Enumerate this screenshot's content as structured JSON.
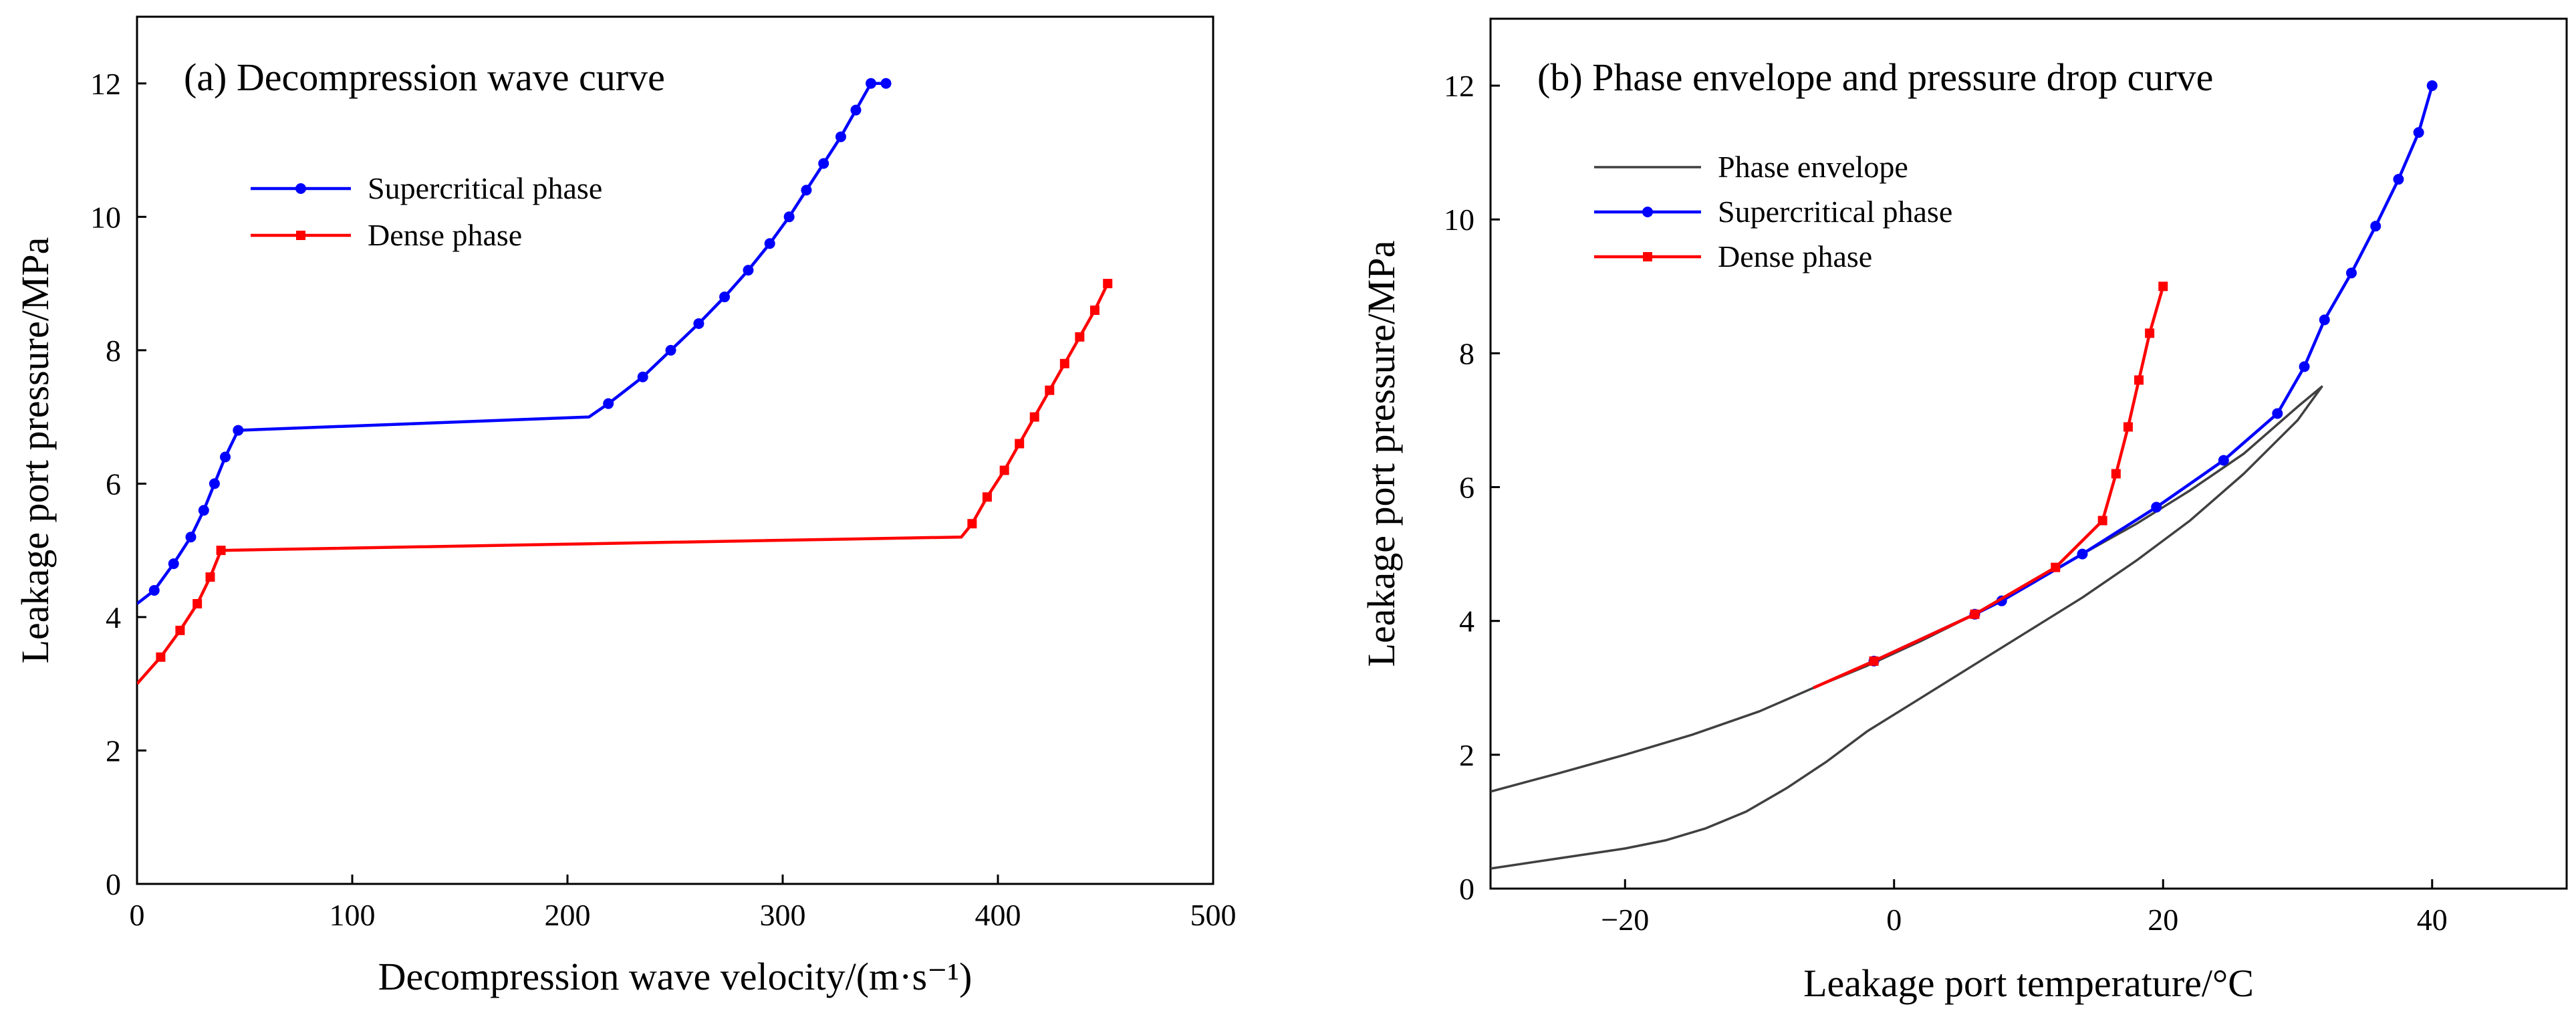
{
  "chart_data": [
    {
      "type": "line",
      "title": "(a) Decompression wave curve",
      "xlabel": "Decompression wave velocity/(m·s⁻¹)",
      "ylabel": "Leakage port pressure/MPa",
      "xlim": [
        0,
        500
      ],
      "ylim": [
        0,
        13
      ],
      "xticks": [
        0,
        100,
        200,
        300,
        400,
        500
      ],
      "yticks": [
        0,
        2,
        4,
        6,
        8,
        10,
        12
      ],
      "xtick_labels": [
        "0",
        "100",
        "200",
        "300",
        "400",
        "500"
      ],
      "ytick_labels": [
        "0",
        "2",
        "4",
        "6",
        "8",
        "10",
        "12"
      ],
      "legend_position": "upper-left",
      "series": [
        {
          "name": "Supercritical phase",
          "color": "#0000ff",
          "marker": "circle",
          "x": [
            0,
            8,
            17,
            25,
            31,
            36,
            41,
            47,
            210,
            219,
            235,
            248,
            261,
            273,
            284,
            294,
            303,
            311,
            319,
            327,
            334,
            341,
            348
          ],
          "y": [
            4.2,
            4.4,
            4.8,
            5.2,
            5.6,
            6.0,
            6.4,
            6.8,
            7.0,
            7.2,
            7.6,
            8.0,
            8.4,
            8.8,
            9.2,
            9.6,
            10.0,
            10.4,
            10.8,
            11.2,
            11.6,
            12.0,
            12.0
          ],
          "marker_mask": [
            false,
            true,
            true,
            true,
            true,
            true,
            true,
            true,
            false,
            true,
            true,
            true,
            true,
            true,
            true,
            true,
            true,
            true,
            true,
            true,
            true,
            true,
            true
          ]
        },
        {
          "name": "Dense phase",
          "color": "#ff0000",
          "marker": "square",
          "x": [
            0,
            11,
            20,
            28,
            34,
            39,
            383,
            388,
            395,
            403,
            410,
            417,
            424,
            431,
            438,
            445,
            451
          ],
          "y": [
            3.0,
            3.4,
            3.8,
            4.2,
            4.6,
            5.0,
            5.2,
            5.4,
            5.8,
            6.2,
            6.6,
            7.0,
            7.4,
            7.8,
            8.2,
            8.6,
            9.0
          ],
          "marker_mask": [
            false,
            true,
            true,
            true,
            true,
            true,
            false,
            true,
            true,
            true,
            true,
            true,
            true,
            true,
            true,
            true,
            true
          ]
        }
      ]
    },
    {
      "type": "line",
      "title": "(b) Phase envelope and pressure drop curve",
      "xlabel": "Leakage port temperature/°C",
      "ylabel": "Leakage port pressure/MPa",
      "xlim": [
        -30,
        50
      ],
      "ylim": [
        0,
        13
      ],
      "xticks": [
        -20,
        0,
        20,
        40
      ],
      "yticks": [
        0,
        2,
        4,
        6,
        8,
        10,
        12
      ],
      "xtick_labels": [
        "−20",
        "0",
        "20",
        "40"
      ],
      "ytick_labels": [
        "0",
        "2",
        "4",
        "6",
        "8",
        "10",
        "12"
      ],
      "legend_position": "upper-left",
      "series": [
        {
          "name": "Phase envelope",
          "color": "#404040",
          "marker": "none",
          "x": [
            -30,
            -25,
            -20,
            -15,
            -10,
            -6,
            -2,
            2,
            6,
            10,
            14,
            18,
            22,
            26,
            30,
            31.8,
            30,
            26,
            22,
            18,
            14,
            10,
            6,
            2,
            -2,
            -5,
            -8,
            -11,
            -14,
            -17,
            -20,
            -25,
            -30
          ],
          "y": [
            1.45,
            1.72,
            2.0,
            2.3,
            2.65,
            3.0,
            3.33,
            3.7,
            4.1,
            4.55,
            5.0,
            5.45,
            5.95,
            6.5,
            7.2,
            7.5,
            7.0,
            6.2,
            5.5,
            4.9,
            4.35,
            3.85,
            3.35,
            2.85,
            2.35,
            1.9,
            1.5,
            1.15,
            0.9,
            0.72,
            0.6,
            0.45,
            0.3
          ]
        },
        {
          "name": "Supercritical phase",
          "color": "#0000ff",
          "marker": "circle",
          "x": [
            -1.5,
            6,
            8,
            14,
            19.5,
            24.5,
            28.5,
            30.5,
            32,
            34,
            35.8,
            37.5,
            39,
            40
          ],
          "y": [
            3.4,
            4.1,
            4.3,
            5.0,
            5.7,
            6.4,
            7.1,
            7.8,
            8.5,
            9.2,
            9.9,
            10.6,
            11.3,
            12.0
          ],
          "marker_mask": [
            true,
            true,
            true,
            true,
            true,
            true,
            true,
            true,
            true,
            true,
            true,
            true,
            true,
            true
          ]
        },
        {
          "name": "Dense phase",
          "color": "#ff0000",
          "marker": "square",
          "x": [
            -6,
            -1.5,
            6,
            12,
            15.5,
            16.5,
            17.4,
            18.2,
            19,
            20
          ],
          "y": [
            3.0,
            3.4,
            4.1,
            4.8,
            5.5,
            6.2,
            6.9,
            7.6,
            8.3,
            9.0
          ],
          "marker_mask": [
            false,
            true,
            true,
            true,
            true,
            true,
            true,
            true,
            true,
            true
          ]
        }
      ]
    }
  ]
}
